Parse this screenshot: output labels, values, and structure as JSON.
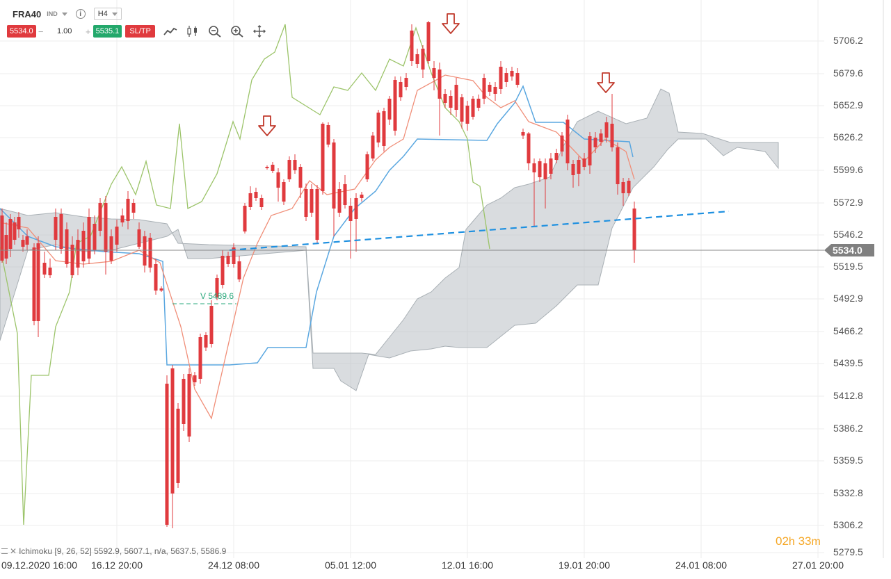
{
  "toolbar": {
    "symbol": "FRA40",
    "market": "IND",
    "timeframe": "H4",
    "info_icon": "info-icon",
    "sell_price": "5534.0",
    "quantity": "1.00",
    "buy_price": "5535.1",
    "sltp_label": "SL/TP",
    "tools": [
      "line-chart-icon",
      "candlestick-icon",
      "zoom-out-icon",
      "zoom-in-icon",
      "move-icon"
    ]
  },
  "indicator": {
    "label": "Ichimoku [9, 26, 52] 5592.9, 5607.1, n/a, 5637.5, 5586.9"
  },
  "countdown": {
    "hours": "02",
    "h_unit": "h",
    "minutes": "33",
    "m_unit": "m"
  },
  "colors": {
    "bull": "#23a86b",
    "bear": "#e03a3e",
    "tenkan": "#f08e78",
    "kijun": "#5aa7e0",
    "chikou": "#9cc46a",
    "cloud": "#b9bfc4",
    "trendline": "#1e90e0",
    "arrow": "#c0392b"
  },
  "chart_data": {
    "type": "candlestick",
    "y_tick_labels": [
      "5706.2",
      "5679.6",
      "5652.9",
      "5626.2",
      "5599.6",
      "5572.9",
      "5546.2",
      "5519.5",
      "5492.9",
      "5466.2",
      "5439.5",
      "5412.8",
      "5386.2",
      "5359.5",
      "5332.8",
      "5306.2",
      "5279.5"
    ],
    "x_tick_labels": [
      "09.12.2020 16:00",
      "16.12 20:00",
      "24.12 08:00",
      "05.01 12:00",
      "12.01 16:00",
      "19.01 20:00",
      "24.01 08:00",
      "27.01 20:00"
    ],
    "current_price": "5534.0",
    "level_label": "V 5489.6",
    "sell_arrows": 3
  }
}
